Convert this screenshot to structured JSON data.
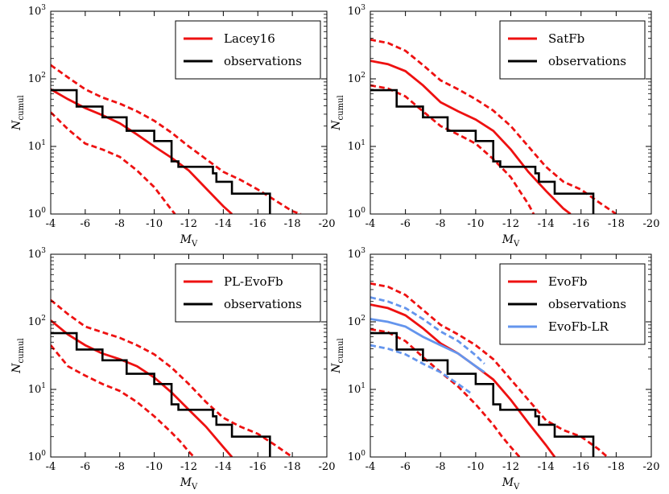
{
  "figure": {
    "xlabel": "M",
    "xlabel_sub": "V",
    "ylabel": "N",
    "ylabel_sub": "cumul",
    "xlim": [
      -4,
      -20
    ],
    "ylim": [
      1,
      1000
    ],
    "x_ticks": [
      -4,
      -6,
      -8,
      -10,
      -12,
      -14,
      -16,
      -18,
      -20
    ],
    "y_ticks": [
      {
        "base": "10",
        "exp": "0",
        "value": 1
      },
      {
        "base": "10",
        "exp": "1",
        "value": 10
      },
      {
        "base": "10",
        "exp": "2",
        "value": 100
      },
      {
        "base": "10",
        "exp": "3",
        "value": 1000
      }
    ],
    "colors": {
      "model": "#ee1111",
      "observations": "#000000",
      "lr": "#6495ed"
    }
  },
  "chart_data": [
    {
      "type": "line",
      "panel": "top-left",
      "legend": [
        "Lacey16",
        "observations"
      ],
      "legend_position": "top-right",
      "xlabel": "M_V",
      "ylabel": "N_cumul",
      "xlim": [
        -4,
        -20
      ],
      "ylim": [
        1,
        1000
      ],
      "yscale": "log",
      "series": [
        {
          "name": "Lacey16",
          "role": "model",
          "style": "solid",
          "x": [
            -4,
            -5,
            -6,
            -7,
            -8,
            -9,
            -10,
            -11,
            -12,
            -13,
            -14,
            -14.5
          ],
          "y": [
            70,
            50,
            37,
            29,
            22,
            15,
            10,
            6.8,
            4.4,
            2.4,
            1.3,
            1.0
          ]
        },
        {
          "name": "Lacey16 upper",
          "role": "model",
          "style": "dashed",
          "x": [
            -4,
            -5,
            -6,
            -7,
            -8,
            -9,
            -10,
            -11,
            -12,
            -13,
            -14,
            -15,
            -16,
            -17,
            -18,
            -18.5
          ],
          "y": [
            160,
            105,
            70,
            53,
            43,
            33,
            24,
            16,
            10,
            6.5,
            4.2,
            3.2,
            2.3,
            1.6,
            1.1,
            1.0
          ]
        },
        {
          "name": "Lacey16 lower",
          "role": "model",
          "style": "dashed",
          "x": [
            -4,
            -5,
            -6,
            -7,
            -8,
            -9,
            -10,
            -10.5,
            -11,
            -11.2
          ],
          "y": [
            32,
            18,
            11,
            9,
            7,
            4.4,
            2.5,
            1.7,
            1.15,
            1.0
          ]
        },
        {
          "name": "observations",
          "role": "observations",
          "style": "step",
          "x": [
            -4,
            -5.5,
            -5.5,
            -7,
            -7,
            -8.4,
            -8.4,
            -10,
            -10,
            -11,
            -11,
            -11.4,
            -11.4,
            -13.4,
            -13.4,
            -13.6,
            -13.6,
            -14.5,
            -14.5,
            -16.7,
            -16.7
          ],
          "y": [
            68,
            68,
            39,
            39,
            27,
            27,
            17,
            17,
            12,
            12,
            6,
            6,
            5,
            5,
            4,
            4,
            3,
            3,
            2,
            2,
            1
          ]
        }
      ]
    },
    {
      "type": "line",
      "panel": "top-right",
      "legend": [
        "SatFb",
        "observations"
      ],
      "legend_position": "top-right",
      "xlabel": "M_V",
      "ylabel": "N_cumul",
      "xlim": [
        -4,
        -20
      ],
      "ylim": [
        1,
        1000
      ],
      "yscale": "log",
      "series": [
        {
          "name": "SatFb",
          "role": "model",
          "style": "solid",
          "x": [
            -4,
            -5,
            -6,
            -7,
            -8,
            -9,
            -10,
            -11,
            -12,
            -13,
            -14,
            -15,
            -15.4
          ],
          "y": [
            185,
            165,
            130,
            80,
            45,
            33,
            25,
            17,
            9,
            4.2,
            2.2,
            1.2,
            1.0
          ]
        },
        {
          "name": "SatFb upper",
          "role": "model",
          "style": "dashed",
          "x": [
            -4,
            -5,
            -6,
            -7,
            -8,
            -9,
            -10,
            -11,
            -12,
            -13,
            -14,
            -15,
            -16,
            -17,
            -18
          ],
          "y": [
            380,
            340,
            260,
            160,
            95,
            70,
            50,
            34,
            20,
            10,
            5,
            3,
            2.3,
            1.5,
            1.0
          ]
        },
        {
          "name": "SatFb lower",
          "role": "model",
          "style": "dashed",
          "x": [
            -4,
            -5,
            -6,
            -7,
            -8,
            -9,
            -10,
            -11,
            -12,
            -12.5,
            -13,
            -13.3
          ],
          "y": [
            80,
            72,
            55,
            33,
            20,
            15,
            11,
            6.5,
            3.5,
            2.2,
            1.4,
            1.0
          ]
        },
        {
          "name": "observations",
          "role": "observations",
          "style": "step",
          "x": [
            -4,
            -5.5,
            -5.5,
            -7,
            -7,
            -8.4,
            -8.4,
            -10,
            -10,
            -11,
            -11,
            -11.4,
            -11.4,
            -13.4,
            -13.4,
            -13.6,
            -13.6,
            -14.5,
            -14.5,
            -16.7,
            -16.7
          ],
          "y": [
            68,
            68,
            39,
            39,
            27,
            27,
            17,
            17,
            12,
            12,
            6,
            6,
            5,
            5,
            4,
            4,
            3,
            3,
            2,
            2,
            1
          ]
        }
      ]
    },
    {
      "type": "line",
      "panel": "bottom-left",
      "legend": [
        "PL-EvoFb",
        "observations"
      ],
      "legend_position": "top-right",
      "xlabel": "M_V",
      "ylabel": "N_cumul",
      "xlim": [
        -4,
        -20
      ],
      "ylim": [
        1,
        1000
      ],
      "yscale": "log",
      "series": [
        {
          "name": "PL-EvoFb",
          "role": "model",
          "style": "solid",
          "x": [
            -4,
            -5,
            -6,
            -7,
            -8,
            -9,
            -10,
            -11,
            -12,
            -13,
            -14,
            -14.5
          ],
          "y": [
            105,
            65,
            45,
            34,
            28,
            22,
            15,
            9,
            5,
            2.8,
            1.4,
            1.0
          ]
        },
        {
          "name": "PL-EvoFb upper",
          "role": "model",
          "style": "dashed",
          "x": [
            -4,
            -5,
            -6,
            -7,
            -8,
            -9,
            -10,
            -11,
            -12,
            -13,
            -14,
            -15,
            -16,
            -17,
            -18
          ],
          "y": [
            210,
            130,
            85,
            70,
            58,
            45,
            33,
            21,
            12,
            6.5,
            3.8,
            2.8,
            2.2,
            1.5,
            1.0
          ]
        },
        {
          "name": "PL-EvoFb lower",
          "role": "model",
          "style": "dashed",
          "x": [
            -4,
            -5,
            -6,
            -7,
            -8,
            -9,
            -10,
            -11,
            -11.5,
            -12,
            -12.3
          ],
          "y": [
            45,
            22,
            16,
            12,
            9.5,
            6.5,
            4,
            2.3,
            1.7,
            1.2,
            1.0
          ]
        },
        {
          "name": "observations",
          "role": "observations",
          "style": "step",
          "x": [
            -4,
            -5.5,
            -5.5,
            -7,
            -7,
            -8.4,
            -8.4,
            -10,
            -10,
            -11,
            -11,
            -11.4,
            -11.4,
            -13.4,
            -13.4,
            -13.6,
            -13.6,
            -14.5,
            -14.5,
            -16.7,
            -16.7
          ],
          "y": [
            68,
            68,
            39,
            39,
            27,
            27,
            17,
            17,
            12,
            12,
            6,
            6,
            5,
            5,
            4,
            4,
            3,
            3,
            2,
            2,
            1
          ]
        }
      ]
    },
    {
      "type": "line",
      "panel": "bottom-right",
      "legend": [
        "EvoFb",
        "observations",
        "EvoFb-LR"
      ],
      "legend_position": "top-right",
      "xlabel": "M_V",
      "ylabel": "N_cumul",
      "xlim": [
        -4,
        -20
      ],
      "ylim": [
        1,
        1000
      ],
      "yscale": "log",
      "series": [
        {
          "name": "EvoFb",
          "role": "model",
          "style": "solid",
          "x": [
            -4,
            -5,
            -6,
            -7,
            -8,
            -9,
            -10,
            -11,
            -12,
            -13,
            -14,
            -14.5
          ],
          "y": [
            180,
            160,
            125,
            80,
            48,
            34,
            22,
            14,
            7,
            3.2,
            1.5,
            1.0
          ]
        },
        {
          "name": "EvoFb upper",
          "role": "model",
          "style": "dashed",
          "x": [
            -4,
            -5,
            -6,
            -7,
            -8,
            -9,
            -10,
            -11,
            -12,
            -13,
            -14,
            -15,
            -16,
            -17,
            -17.5
          ],
          "y": [
            370,
            330,
            250,
            150,
            90,
            65,
            45,
            28,
            14,
            7,
            3.5,
            2.5,
            2,
            1.3,
            1.0
          ]
        },
        {
          "name": "EvoFb lower",
          "role": "model",
          "style": "dashed",
          "x": [
            -4,
            -5,
            -6,
            -7,
            -8,
            -9,
            -10,
            -11,
            -11.5,
            -12,
            -12.5
          ],
          "y": [
            78,
            70,
            52,
            30,
            18,
            11,
            6,
            3,
            2,
            1.4,
            1.0
          ]
        },
        {
          "name": "EvoFb-LR",
          "role": "lr",
          "style": "solid",
          "x": [
            -4,
            -5,
            -6,
            -7,
            -8,
            -9,
            -10,
            -10.5
          ],
          "y": [
            110,
            100,
            85,
            60,
            45,
            34,
            22,
            18
          ]
        },
        {
          "name": "EvoFb-LR upper",
          "role": "lr",
          "style": "dashed",
          "x": [
            -4,
            -5,
            -6,
            -7,
            -8,
            -9,
            -10,
            -10.5
          ],
          "y": [
            230,
            200,
            160,
            110,
            72,
            52,
            32,
            24
          ]
        },
        {
          "name": "EvoFb-LR lower",
          "role": "lr",
          "style": "dashed",
          "x": [
            -4,
            -5,
            -6,
            -7,
            -8,
            -9,
            -9.8
          ],
          "y": [
            45,
            40,
            33,
            24,
            18,
            12,
            8.5
          ]
        },
        {
          "name": "observations",
          "role": "observations",
          "style": "step",
          "x": [
            -4,
            -5.5,
            -5.5,
            -7,
            -7,
            -8.4,
            -8.4,
            -10,
            -10,
            -11,
            -11,
            -11.4,
            -11.4,
            -13.4,
            -13.4,
            -13.6,
            -13.6,
            -14.5,
            -14.5,
            -16.7,
            -16.7
          ],
          "y": [
            68,
            68,
            39,
            39,
            27,
            27,
            17,
            17,
            12,
            12,
            6,
            6,
            5,
            5,
            4,
            4,
            3,
            3,
            2,
            2,
            1
          ]
        }
      ]
    }
  ]
}
